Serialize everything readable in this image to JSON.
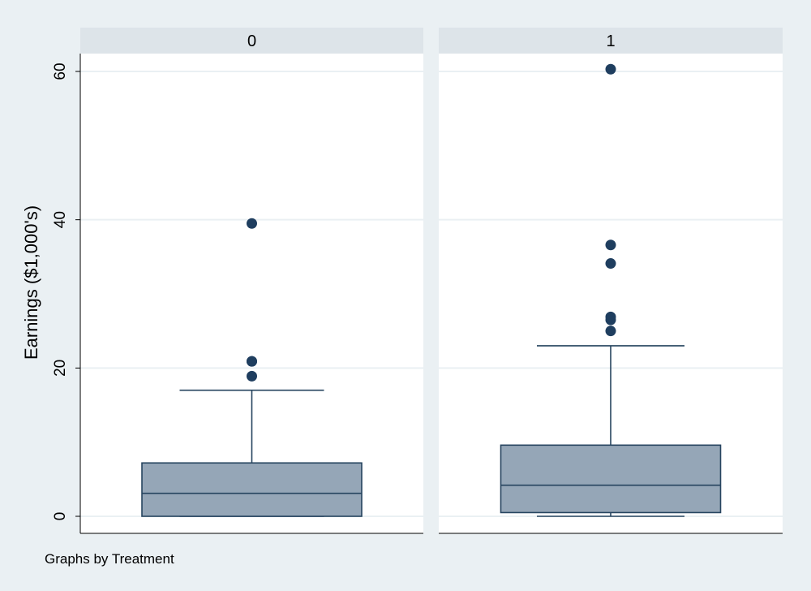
{
  "chart_data": {
    "type": "box",
    "ylabel": "Earnings ($1,000's)",
    "ylim": [
      0,
      62
    ],
    "yticks": [
      0,
      20,
      40,
      60
    ],
    "grid": true,
    "note": "Graphs by Treatment",
    "box_fill": "#95a6b7",
    "box_stroke": "#26445f",
    "outlier_color": "#1f3e5f",
    "background": "#eaf0f3",
    "panel_header_color": "#dde4e9",
    "panels": [
      {
        "title": "0",
        "box": {
          "whisker_low": 0,
          "q1": 0,
          "median": 3.1,
          "q3": 7.2,
          "whisker_high": 17
        },
        "outliers": [
          18.9,
          20.9,
          20.9,
          39.5
        ]
      },
      {
        "title": "1",
        "box": {
          "whisker_low": 0,
          "q1": 0.5,
          "median": 4.2,
          "q3": 9.6,
          "whisker_high": 23
        },
        "outliers": [
          25,
          26.5,
          26.9,
          34.1,
          36.6,
          60.3
        ]
      }
    ]
  }
}
